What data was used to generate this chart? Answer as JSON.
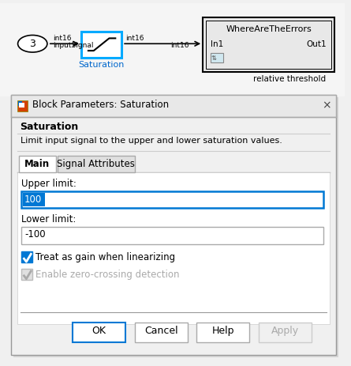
{
  "bg_color": "#f0f0f0",
  "canvas_bg": "#ffffff",
  "dialog_bg": "#f5f5f5",
  "dialog_border": "#cccccc",
  "blue_highlight": "#0078d4",
  "title_bar_text": "Block Parameters: Saturation",
  "close_x": "×",
  "block_name": "Saturation",
  "block_desc": "Limit input signal to the upper and lower saturation values.",
  "tab_main": "Main",
  "tab_signal": "Signal Attributes",
  "upper_label": "Upper limit:",
  "upper_value": "100",
  "lower_label": "Lower limit:",
  "lower_value": "-100",
  "check1_text": "Treat as gain when linearizing",
  "check2_text": "Enable zero-crossing detection",
  "btn_ok": "OK",
  "btn_cancel": "Cancel",
  "btn_help": "Help",
  "btn_apply": "Apply",
  "source_label": "3",
  "sig1": "int16",
  "sig2": "inputSignal",
  "sig3": "int16",
  "sig4": "int16",
  "ref_block": "WhereAreTheErrors",
  "ref_in": "In1",
  "ref_out": "Out1",
  "ref_label": "relative threshold",
  "saturation_label": "Saturation"
}
